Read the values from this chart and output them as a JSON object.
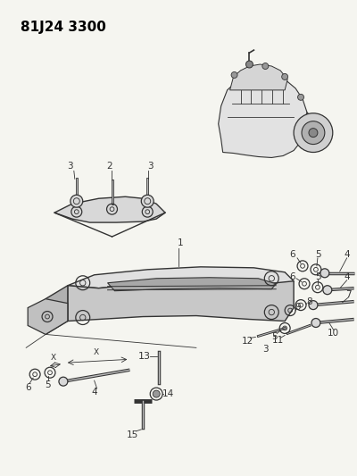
{
  "title": "81J24 3300",
  "bg_color": "#f5f5f0",
  "fig_width": 4.0,
  "fig_height": 5.33,
  "dpi": 100,
  "gray1": "#333333",
  "gray2": "#888888",
  "gray3": "#bbbbbb",
  "gray_fill": "#d8d8d8",
  "gray_dark": "#555555"
}
